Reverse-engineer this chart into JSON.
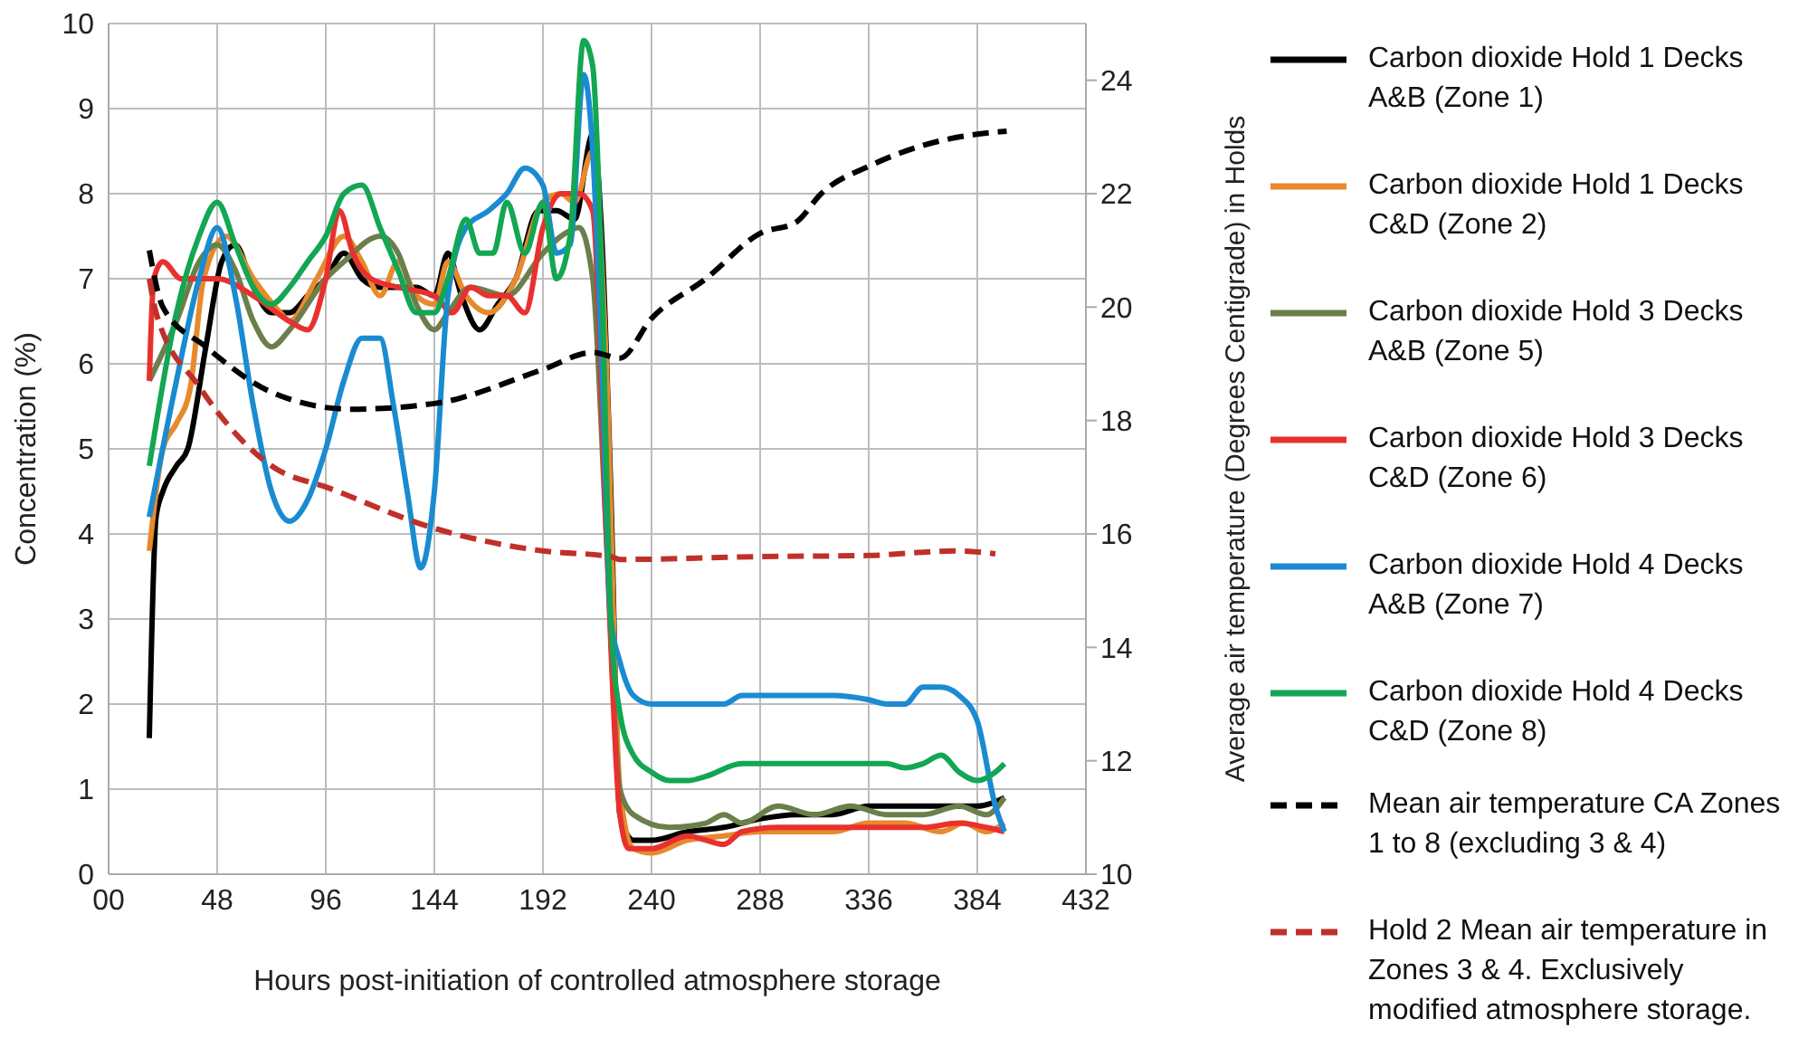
{
  "chart_data": {
    "type": "line",
    "xlabel": "Hours post-initiation of controlled atmosphere storage",
    "ylabel": "Concentration (%)",
    "y2label": "Average air temperature (Degrees Centigrade) in Holds",
    "xlim": [
      0,
      432
    ],
    "xticks": [
      {
        "value": 0,
        "label": "00"
      },
      48,
      96,
      144,
      192,
      240,
      288,
      336,
      384,
      432
    ],
    "ylim": [
      0,
      10
    ],
    "yticks": [
      0,
      1,
      2,
      3,
      4,
      5,
      6,
      7,
      8,
      9,
      10
    ],
    "y2lim": [
      10,
      25
    ],
    "y2ticks": [
      10,
      12,
      14,
      16,
      18,
      20,
      22,
      24
    ],
    "grid": true,
    "legend": "right",
    "series": [
      {
        "name": "Carbon dioxide Hold 1 Decks A&B (Zone 1)",
        "color": "#000000",
        "line_style": "solid",
        "x": [
          18,
          21,
          24,
          30,
          35,
          43,
          50,
          56,
          64,
          72,
          80,
          88,
          96,
          104,
          112,
          120,
          128,
          136,
          144,
          150,
          156,
          164,
          172,
          180,
          190,
          198,
          206,
          214,
          218,
          222,
          226,
          232,
          240,
          256,
          272,
          288,
          304,
          320,
          336,
          352,
          368,
          384,
          396
        ],
        "values": [
          1.6,
          4.2,
          4.5,
          4.8,
          5.0,
          6.2,
          7.2,
          7.4,
          6.9,
          6.6,
          6.6,
          6.8,
          7.0,
          7.3,
          7.0,
          6.9,
          6.9,
          6.9,
          6.8,
          7.3,
          6.8,
          6.4,
          6.7,
          7.0,
          7.8,
          7.8,
          7.7,
          8.7,
          7.5,
          4.5,
          0.7,
          0.4,
          0.4,
          0.5,
          0.55,
          0.65,
          0.7,
          0.7,
          0.8,
          0.8,
          0.8,
          0.8,
          0.9
        ]
      },
      {
        "name": "Carbon dioxide Hold 1 Decks C&D (Zone 2)",
        "color": "#e8892c",
        "line_style": "solid",
        "x": [
          18,
          24,
          30,
          36,
          42,
          52,
          64,
          76,
          80,
          92,
          104,
          112,
          120,
          128,
          136,
          144,
          150,
          158,
          168,
          180,
          192,
          200,
          206,
          214,
          220,
          226,
          232,
          240,
          256,
          272,
          288,
          304,
          320,
          336,
          352,
          368,
          378,
          388,
          396
        ],
        "values": [
          3.8,
          5.0,
          5.3,
          5.7,
          7.0,
          7.5,
          7.0,
          6.6,
          6.5,
          7.0,
          7.5,
          7.2,
          6.8,
          7.2,
          6.8,
          6.7,
          7.2,
          6.8,
          6.6,
          7.0,
          7.9,
          8.0,
          7.9,
          8.5,
          6.0,
          1.0,
          0.3,
          0.25,
          0.4,
          0.45,
          0.5,
          0.5,
          0.5,
          0.6,
          0.6,
          0.5,
          0.6,
          0.5,
          0.6
        ]
      },
      {
        "name": "Carbon dioxide Hold 3 Decks A&B (Zone 5)",
        "color": "#6b7f4a",
        "line_style": "solid",
        "x": [
          18,
          30,
          40,
          48,
          56,
          64,
          72,
          80,
          96,
          104,
          120,
          128,
          136,
          144,
          150,
          160,
          176,
          192,
          200,
          208,
          214,
          220,
          226,
          232,
          248,
          264,
          272,
          280,
          296,
          312,
          328,
          344,
          360,
          376,
          388,
          396
        ],
        "values": [
          5.8,
          6.5,
          7.2,
          7.4,
          7.1,
          6.5,
          6.2,
          6.4,
          7.0,
          7.2,
          7.5,
          7.3,
          6.7,
          6.4,
          6.6,
          6.9,
          6.8,
          7.3,
          7.5,
          7.6,
          7.0,
          4.0,
          1.0,
          0.7,
          0.55,
          0.6,
          0.7,
          0.6,
          0.8,
          0.7,
          0.8,
          0.7,
          0.7,
          0.8,
          0.7,
          0.9
        ]
      },
      {
        "name": "Carbon dioxide Hold 3 Decks C&D (Zone 6)",
        "color": "#e8312e",
        "line_style": "solid",
        "x": [
          18,
          20,
          24,
          32,
          48,
          64,
          80,
          88,
          96,
          102,
          108,
          116,
          128,
          144,
          152,
          160,
          168,
          176,
          184,
          192,
          200,
          208,
          214,
          220,
          226,
          230,
          240,
          256,
          264,
          272,
          280,
          296,
          320,
          344,
          360,
          376,
          388,
          396
        ],
        "values": [
          5.8,
          7.0,
          7.2,
          7.0,
          7.0,
          6.8,
          6.5,
          6.4,
          7.0,
          7.8,
          7.3,
          7.0,
          6.9,
          6.8,
          6.6,
          6.9,
          6.8,
          6.8,
          6.6,
          7.6,
          8.0,
          8.0,
          7.8,
          4.0,
          0.7,
          0.3,
          0.3,
          0.45,
          0.4,
          0.35,
          0.5,
          0.55,
          0.55,
          0.55,
          0.55,
          0.6,
          0.55,
          0.5
        ]
      },
      {
        "name": "Carbon dioxide Hold 4 Decks A&B (Zone 7)",
        "color": "#1a8bd1",
        "line_style": "solid",
        "x": [
          18,
          30,
          40,
          48,
          56,
          64,
          72,
          80,
          88,
          96,
          104,
          112,
          120,
          126,
          132,
          138,
          144,
          150,
          158,
          168,
          176,
          184,
          192,
          198,
          204,
          210,
          214,
          218,
          222,
          226,
          232,
          240,
          256,
          272,
          280,
          304,
          320,
          336,
          344,
          352,
          360,
          368,
          376,
          384,
          392,
          396
        ],
        "values": [
          4.2,
          5.8,
          7.0,
          7.6,
          6.8,
          5.5,
          4.5,
          4.15,
          4.4,
          5.0,
          5.8,
          6.3,
          6.3,
          5.5,
          4.5,
          3.6,
          4.5,
          6.8,
          7.6,
          7.8,
          8.0,
          8.3,
          8.1,
          7.3,
          7.4,
          9.4,
          8.5,
          6.0,
          3.0,
          2.5,
          2.1,
          2.0,
          2.0,
          2.0,
          2.1,
          2.1,
          2.1,
          2.05,
          2.0,
          2.0,
          2.2,
          2.2,
          2.1,
          1.8,
          0.8,
          0.5
        ]
      },
      {
        "name": "Carbon dioxide Hold 4 Decks C&D (Zone 8)",
        "color": "#13a653",
        "line_style": "solid",
        "x": [
          18,
          30,
          40,
          48,
          56,
          64,
          72,
          80,
          88,
          96,
          104,
          112,
          120,
          128,
          136,
          144,
          150,
          158,
          164,
          170,
          176,
          184,
          192,
          198,
          204,
          210,
          214,
          218,
          222,
          226,
          232,
          240,
          248,
          256,
          264,
          280,
          296,
          312,
          328,
          344,
          352,
          360,
          368,
          376,
          384,
          392,
          396
        ],
        "values": [
          4.8,
          6.6,
          7.5,
          7.9,
          7.4,
          6.9,
          6.7,
          6.9,
          7.2,
          7.5,
          8.0,
          8.1,
          7.6,
          7.1,
          6.6,
          6.6,
          7.0,
          7.7,
          7.3,
          7.3,
          7.9,
          7.3,
          7.9,
          7.0,
          7.5,
          9.8,
          9.5,
          7.0,
          3.0,
          1.9,
          1.4,
          1.2,
          1.1,
          1.1,
          1.15,
          1.3,
          1.3,
          1.3,
          1.3,
          1.3,
          1.25,
          1.3,
          1.4,
          1.2,
          1.1,
          1.2,
          1.3
        ]
      },
      {
        "name": "Mean air temperature CA Zones 1 to 8 (excluding 3 & 4)",
        "color": "#000000",
        "line_style": "dashed",
        "axis": "y2",
        "x": [
          18,
          24,
          43,
          72,
          107,
          144,
          192,
          214,
          226,
          240,
          264,
          288,
          304,
          315,
          337,
          360,
          384,
          397
        ],
        "values": [
          21.0,
          20.0,
          19.3,
          18.5,
          18.2,
          18.3,
          18.9,
          19.2,
          19.1,
          19.8,
          20.5,
          21.3,
          21.5,
          22.0,
          22.5,
          22.85,
          23.05,
          23.1
        ]
      },
      {
        "name": "Hold 2 Mean air temperature in Zones 3 & 4. Exclusively modified atmosphere storage.",
        "color": "#c0302a",
        "line_style": "dashed",
        "axis": "y2",
        "x": [
          18,
          21,
          40,
          72,
          98,
          144,
          192,
          222,
          226,
          288,
          336,
          374,
          392
        ],
        "values": [
          20.5,
          19.9,
          18.6,
          17.2,
          16.8,
          16.1,
          15.7,
          15.6,
          15.55,
          15.6,
          15.62,
          15.7,
          15.65
        ]
      }
    ]
  }
}
